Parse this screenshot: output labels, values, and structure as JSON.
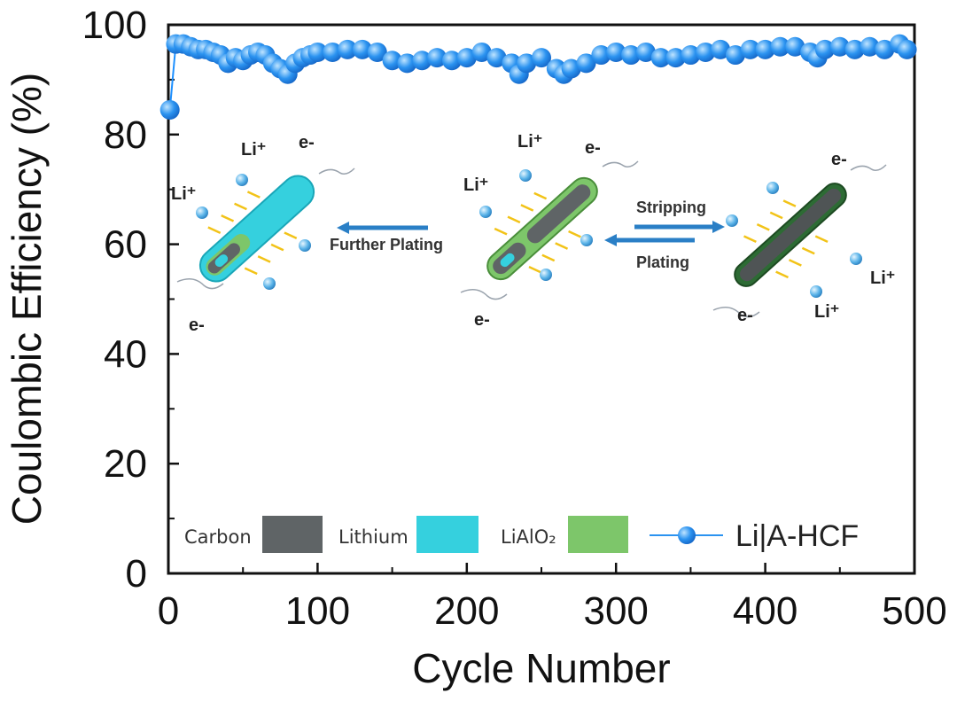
{
  "chart_data": {
    "type": "scatter",
    "xlabel": "Cycle Number",
    "ylabel": "Coulombic Efficiency (%)",
    "xlim": [
      0,
      500
    ],
    "ylim": [
      0,
      100
    ],
    "x_ticks": [
      0,
      100,
      200,
      300,
      400,
      500
    ],
    "y_ticks": [
      0,
      20,
      40,
      60,
      80,
      100
    ],
    "x_tick_labels": [
      "0",
      "100",
      "200",
      "300",
      "400",
      "500"
    ],
    "y_tick_labels": [
      "0",
      "20",
      "40",
      "60",
      "80",
      "100"
    ],
    "grid": false,
    "legend_position": "bottom",
    "color": "#1e90ff",
    "series": [
      {
        "name": "Li|A-HCF",
        "x": [
          1,
          5,
          10,
          15,
          20,
          25,
          30,
          35,
          40,
          45,
          50,
          55,
          60,
          65,
          70,
          75,
          80,
          85,
          90,
          95,
          100,
          110,
          120,
          130,
          140,
          150,
          160,
          170,
          180,
          190,
          200,
          210,
          220,
          230,
          235,
          240,
          250,
          260,
          265,
          270,
          280,
          290,
          300,
          310,
          320,
          330,
          340,
          350,
          360,
          370,
          380,
          390,
          400,
          410,
          420,
          430,
          435,
          440,
          450,
          460,
          470,
          480,
          490,
          495
        ],
        "values": [
          84.5,
          96.5,
          96.5,
          96,
          95.5,
          95.5,
          95,
          94.5,
          93,
          94,
          93.5,
          94.5,
          95,
          94.5,
          93,
          92,
          91,
          93,
          94,
          94.5,
          95,
          95,
          95.5,
          95.5,
          95,
          93.5,
          93,
          93.5,
          94,
          93.5,
          94,
          95,
          94,
          93,
          91,
          93,
          94,
          92,
          91,
          92,
          93,
          94.5,
          95,
          94.5,
          95,
          94,
          94,
          94.5,
          95,
          95.5,
          94.5,
          95.5,
          95.5,
          96,
          96,
          95,
          94,
          95.5,
          96,
          95.5,
          96,
          95.5,
          96.5,
          95.5
        ]
      }
    ],
    "annotations": {
      "li_ion": "Li⁺",
      "electron": "e-",
      "further_plating": "Further Plating",
      "stripping": "Stripping",
      "plating": "Plating"
    },
    "legend_items": [
      {
        "label": "Carbon",
        "color": "#5f6466"
      },
      {
        "label": "Lithium",
        "color": "#35d0de"
      },
      {
        "label": "LiAlO₂",
        "color": "#7dc66a"
      }
    ]
  }
}
